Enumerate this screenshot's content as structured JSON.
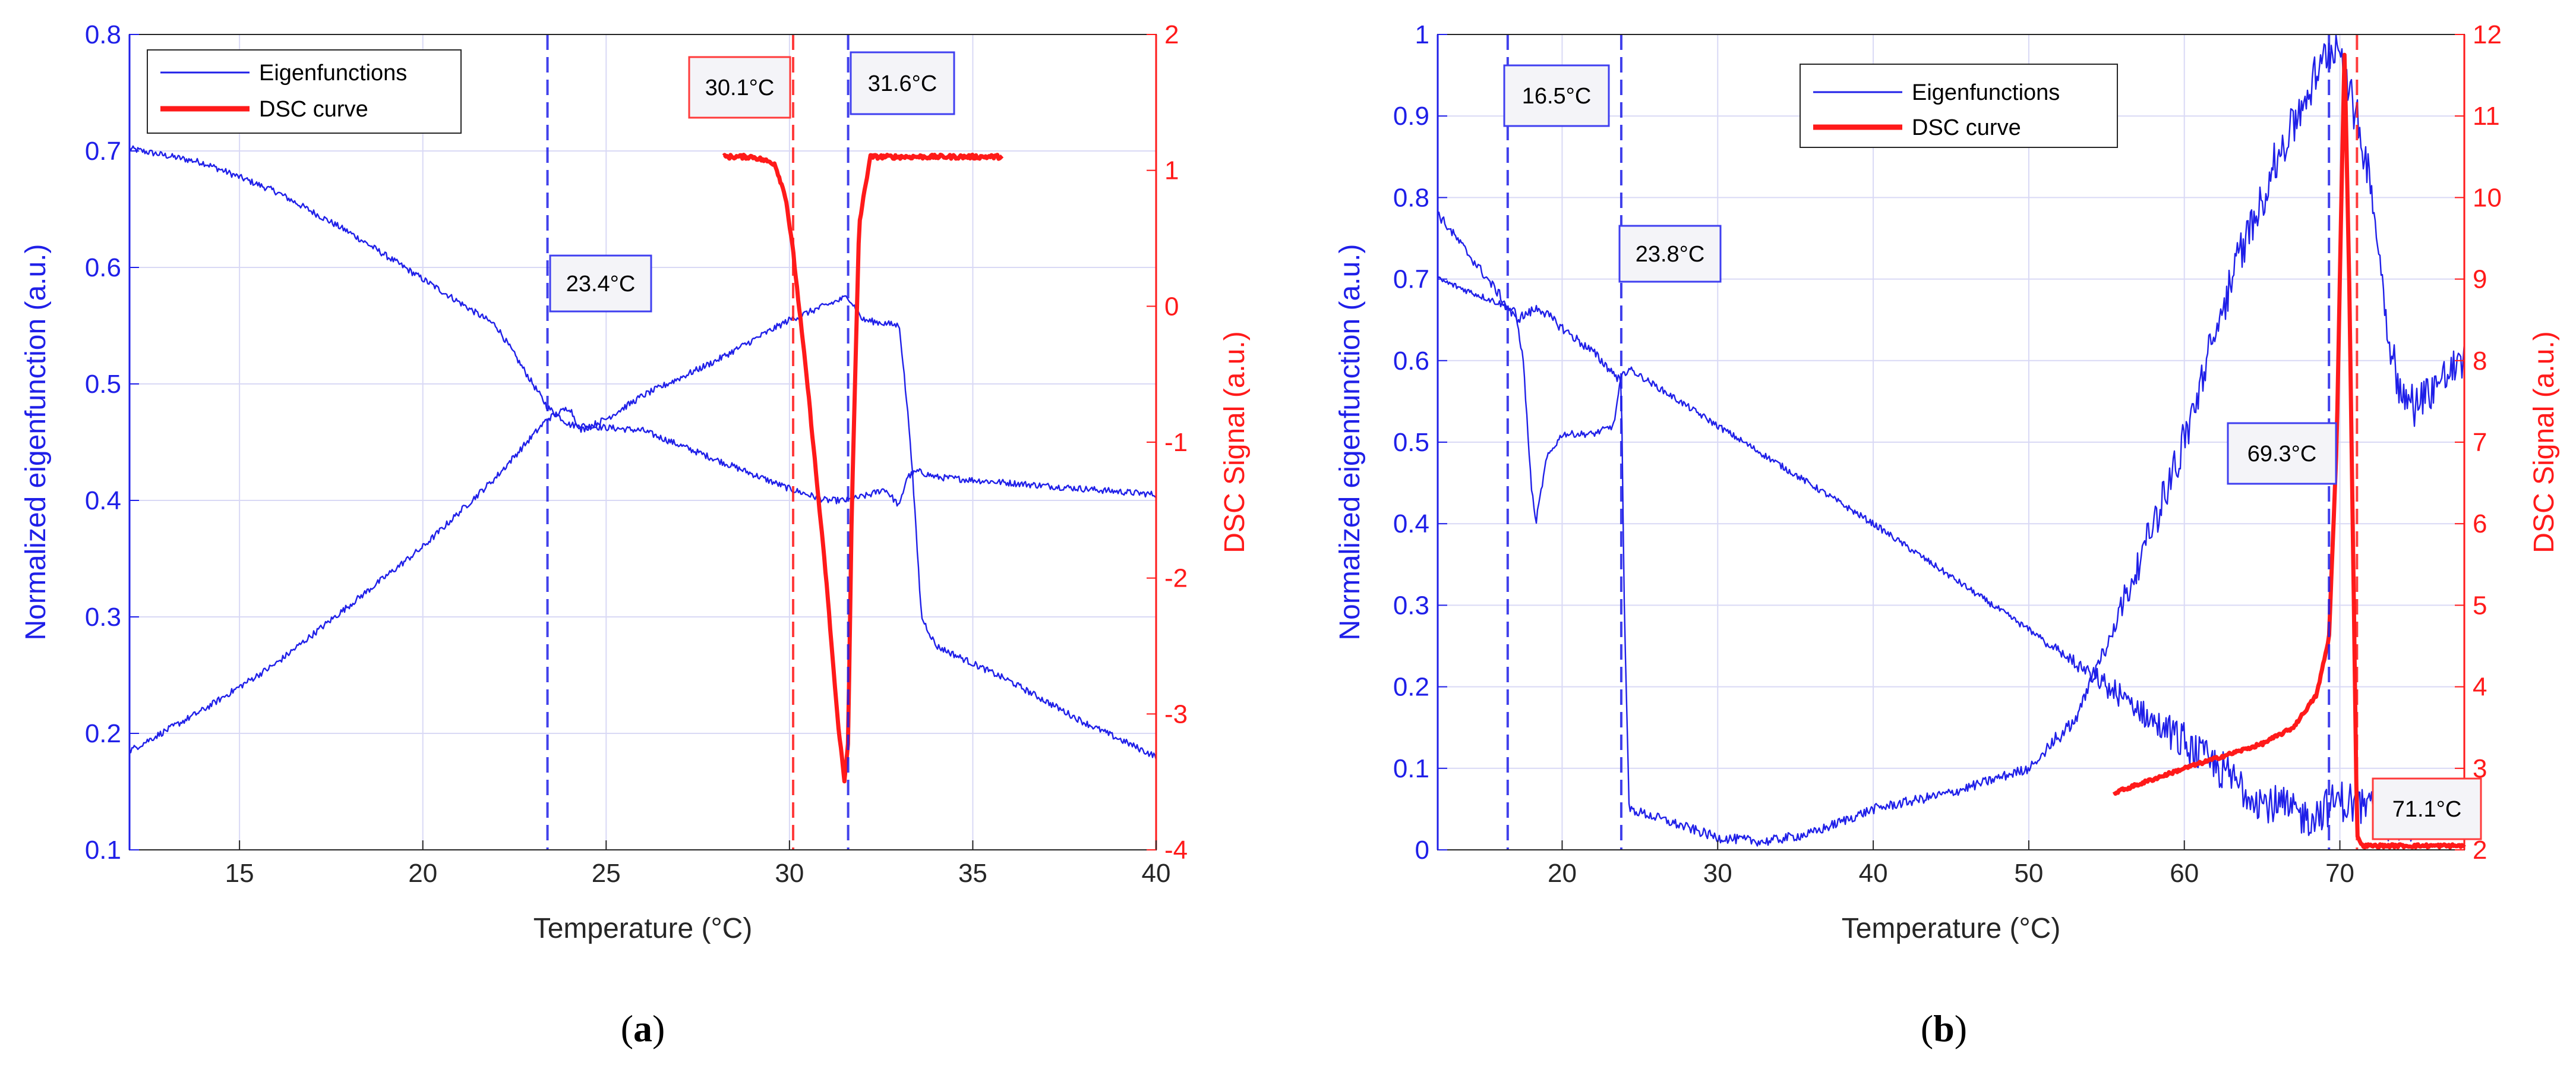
{
  "colors": {
    "blue": "#1f1fe8",
    "red": "#ff1a1a",
    "grid": "#d9d9f5",
    "box_fill": "#f4f4f8",
    "label_blue": "#3f3ff0",
    "label_red": "#ff3a3a"
  },
  "chart_data": [
    {
      "id": "a",
      "panel_label": "a",
      "type": "line",
      "xlabel": "Temperature (°C)",
      "ylabel_left": "Normalized eigenfunction (a.u.)",
      "ylabel_right": "DSC Signal (a.u.)",
      "xlim": [
        12,
        40
      ],
      "ylim_left": [
        0.1,
        0.8
      ],
      "ylim_right": [
        -4,
        2
      ],
      "xticks": [
        15,
        20,
        25,
        30,
        35,
        40
      ],
      "xtick_labels": [
        "15",
        "20",
        "25",
        "30",
        "35",
        "40"
      ],
      "yticks_left": [
        0.1,
        0.2,
        0.3,
        0.4,
        0.5,
        0.6,
        0.7,
        0.8
      ],
      "ytick_labels_left": [
        "0.1",
        "0.2",
        "0.3",
        "0.4",
        "0.5",
        "0.6",
        "0.7",
        "0.8"
      ],
      "yticks_right": [
        -4,
        -3,
        -2,
        -1,
        0,
        1,
        2
      ],
      "ytick_labels_right": [
        "-4",
        "-3",
        "-2",
        "-1",
        "0",
        "1",
        "2"
      ],
      "grid": true,
      "legend": {
        "placement": "top-left",
        "entries": [
          "Eigenfunctions",
          "DSC curve"
        ]
      },
      "series": [
        {
          "name": "Eigenfunctions (1)",
          "axis": "left",
          "noise": 0.004,
          "x": [
            12,
            14,
            16,
            18,
            20,
            22,
            23.4,
            24,
            26,
            28,
            30,
            31,
            31.6,
            32.2,
            32.6,
            33,
            33.2,
            33.5,
            34,
            36,
            38,
            40
          ],
          "y": [
            0.702,
            0.69,
            0.665,
            0.63,
            0.59,
            0.55,
            0.48,
            0.465,
            0.46,
            0.435,
            0.41,
            0.4,
            0.4,
            0.405,
            0.41,
            0.395,
            0.42,
            0.425,
            0.42,
            0.415,
            0.41,
            0.405
          ]
        },
        {
          "name": "Eigenfunctions (2)",
          "axis": "left",
          "noise": 0.004,
          "x": [
            12,
            14,
            16,
            18,
            20,
            22,
            23.4,
            24,
            24.3,
            25,
            26,
            28,
            30,
            31.6,
            32,
            33,
            33.3,
            33.6,
            34,
            36,
            38,
            40
          ],
          "y": [
            0.185,
            0.22,
            0.26,
            0.31,
            0.36,
            0.42,
            0.47,
            0.48,
            0.46,
            0.47,
            0.49,
            0.52,
            0.555,
            0.575,
            0.555,
            0.55,
            0.45,
            0.3,
            0.275,
            0.245,
            0.21,
            0.18
          ]
        },
        {
          "name": "DSC curve",
          "axis": "right",
          "noise": 0.015,
          "x": [
            28.2,
            29,
            29.6,
            29.9,
            30.1,
            30.5,
            31,
            31.3,
            31.5,
            31.6,
            31.7,
            31.9,
            32.2,
            33,
            35.8
          ],
          "y": [
            1.1,
            1.1,
            1.05,
            0.8,
            0.4,
            -0.6,
            -2,
            -3,
            -3.5,
            -3.2,
            -1.5,
            0.6,
            1.1,
            1.1,
            1.1
          ]
        }
      ],
      "vlines": [
        {
          "x": 23.4,
          "color": "blue",
          "label": "23.4°C"
        },
        {
          "x": 30.1,
          "color": "red",
          "label": "30.1°C"
        },
        {
          "x": 31.6,
          "color": "blue",
          "label": "31.6°C"
        }
      ],
      "annotations": [
        "23.4°C",
        "30.1°C",
        "31.6°C"
      ]
    },
    {
      "id": "b",
      "panel_label": "b",
      "type": "line",
      "xlabel": "Temperature (°C)",
      "ylabel_left": "Normalized eigenfunction (a.u.)",
      "ylabel_right": "DSC Signal (a.u.)",
      "xlim": [
        12,
        78
      ],
      "ylim_left": [
        0,
        1
      ],
      "ylim_right": [
        2,
        12
      ],
      "xticks": [
        20,
        30,
        40,
        50,
        60,
        70
      ],
      "xtick_labels": [
        "20",
        "30",
        "40",
        "50",
        "60",
        "70"
      ],
      "yticks_left": [
        0,
        0.1,
        0.2,
        0.3,
        0.4,
        0.5,
        0.6,
        0.7,
        0.8,
        0.9,
        1
      ],
      "ytick_labels_left": [
        "0",
        "0.1",
        "0.2",
        "0.3",
        "0.4",
        "0.5",
        "0.6",
        "0.7",
        "0.8",
        "0.9",
        "1"
      ],
      "yticks_right": [
        2,
        3,
        4,
        5,
        6,
        7,
        8,
        9,
        10,
        11,
        12
      ],
      "ytick_labels_right": [
        "2",
        "3",
        "4",
        "5",
        "6",
        "7",
        "8",
        "9",
        "10",
        "11",
        "12"
      ],
      "grid": true,
      "legend": {
        "placement": "top-center",
        "entries": [
          "Eigenfunctions",
          "DSC curve"
        ]
      },
      "series": [
        {
          "name": "Eigenfunctions (1)",
          "axis": "left",
          "noise": 0.004,
          "x": [
            12,
            14,
            16,
            17,
            17.5,
            18,
            18.3,
            19,
            20,
            22,
            23.3,
            23.8,
            24.3,
            30,
            40,
            50,
            55,
            60,
            65,
            68,
            70,
            72,
            74,
            76,
            78
          ],
          "y": [
            0.7,
            0.685,
            0.67,
            0.66,
            0.6,
            0.45,
            0.4,
            0.48,
            0.51,
            0.51,
            0.52,
            0.58,
            0.59,
            0.52,
            0.4,
            0.27,
            0.2,
            0.13,
            0.06,
            0.04,
            0.06,
            0.05,
            0.03,
            0.04,
            0.05
          ]
        },
        {
          "name": "Eigenfunctions (2)",
          "axis": "left",
          "noise": 0.006,
          "x": [
            12,
            14,
            16,
            17,
            18,
            18.5,
            20,
            22,
            23.8,
            24,
            24.3,
            26,
            30,
            33,
            36,
            40,
            45,
            50,
            53,
            56,
            60,
            63,
            66,
            68,
            69.3,
            70,
            71,
            72,
            73,
            74,
            75,
            76,
            78
          ],
          "y": [
            0.78,
            0.73,
            0.68,
            0.65,
            0.66,
            0.665,
            0.64,
            0.61,
            0.575,
            0.3,
            0.05,
            0.04,
            0.015,
            0.01,
            0.02,
            0.05,
            0.07,
            0.1,
            0.16,
            0.3,
            0.5,
            0.7,
            0.85,
            0.93,
            0.98,
            0.985,
            0.9,
            0.82,
            0.65,
            0.55,
            0.55,
            0.57,
            0.6
          ]
        },
        {
          "name": "DSC curve",
          "axis": "right",
          "noise": 0.02,
          "x": [
            55.5,
            60,
            65,
            67,
            68.5,
            69.3,
            69.8,
            70.1,
            70.3,
            70.6,
            70.9,
            71.1,
            71.4,
            75,
            78
          ],
          "y": [
            2.7,
            3.0,
            3.3,
            3.5,
            3.9,
            4.6,
            7,
            10,
            11.8,
            9,
            5,
            2.2,
            2.05,
            2.05,
            2.05
          ]
        }
      ],
      "vlines": [
        {
          "x": 16.5,
          "color": "blue",
          "label": "16.5°C"
        },
        {
          "x": 23.8,
          "color": "blue",
          "label": "23.8°C"
        },
        {
          "x": 69.3,
          "color": "blue",
          "label": "69.3°C"
        },
        {
          "x": 71.1,
          "color": "red",
          "label": "71.1°C"
        }
      ],
      "annotations": [
        "16.5°C",
        "23.8°C",
        "69.3°C",
        "71.1°C"
      ]
    }
  ]
}
